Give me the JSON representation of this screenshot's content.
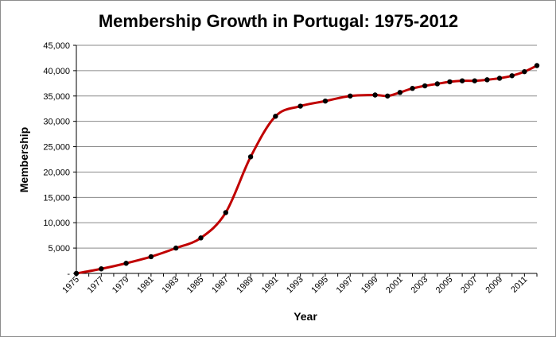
{
  "chart_data": {
    "type": "line",
    "title": "Membership Growth in Portugal: 1975-2012",
    "xlabel": "Year",
    "ylabel": "Membership",
    "ylim": [
      0,
      45000
    ],
    "xlim": [
      1975,
      2012
    ],
    "y_ticks": [
      {
        "value": 0,
        "label": "-"
      },
      {
        "value": 5000,
        "label": "5,000"
      },
      {
        "value": 10000,
        "label": "10,000"
      },
      {
        "value": 15000,
        "label": "15,000"
      },
      {
        "value": 20000,
        "label": "20,000"
      },
      {
        "value": 25000,
        "label": "25,000"
      },
      {
        "value": 30000,
        "label": "30,000"
      },
      {
        "value": 35000,
        "label": "35,000"
      },
      {
        "value": 40000,
        "label": "40,000"
      },
      {
        "value": 45000,
        "label": "45,000"
      }
    ],
    "x_ticks": [
      "1975",
      "1977",
      "1979",
      "1981",
      "1983",
      "1985",
      "1987",
      "1989",
      "1991",
      "1993",
      "1995",
      "1997",
      "1999",
      "2001",
      "2003",
      "2005",
      "2007",
      "2009",
      "2011"
    ],
    "grid": true,
    "line_color": "#c00000",
    "marker_color": "#000000",
    "series": [
      {
        "name": "Membership",
        "points": [
          {
            "x": 1975,
            "y": 0
          },
          {
            "x": 1977,
            "y": 900
          },
          {
            "x": 1979,
            "y": 2000
          },
          {
            "x": 1981,
            "y": 3300
          },
          {
            "x": 1983,
            "y": 5000
          },
          {
            "x": 1985,
            "y": 7000
          },
          {
            "x": 1987,
            "y": 12000
          },
          {
            "x": 1989,
            "y": 23000
          },
          {
            "x": 1991,
            "y": 31000
          },
          {
            "x": 1993,
            "y": 33000
          },
          {
            "x": 1995,
            "y": 34000
          },
          {
            "x": 1997,
            "y": 35000
          },
          {
            "x": 1999,
            "y": 35200
          },
          {
            "x": 2000,
            "y": 35000
          },
          {
            "x": 2001,
            "y": 35700
          },
          {
            "x": 2002,
            "y": 36500
          },
          {
            "x": 2003,
            "y": 37000
          },
          {
            "x": 2004,
            "y": 37400
          },
          {
            "x": 2005,
            "y": 37800
          },
          {
            "x": 2006,
            "y": 38000
          },
          {
            "x": 2007,
            "y": 38000
          },
          {
            "x": 2008,
            "y": 38200
          },
          {
            "x": 2009,
            "y": 38500
          },
          {
            "x": 2010,
            "y": 39000
          },
          {
            "x": 2011,
            "y": 39800
          },
          {
            "x": 2012,
            "y": 41000
          }
        ]
      }
    ]
  }
}
